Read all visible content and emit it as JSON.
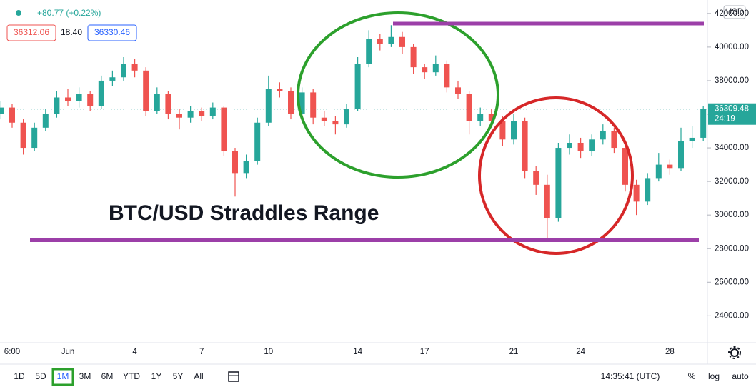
{
  "header": {
    "change": "+80.77 (+0.22%)",
    "bid": 36312.06,
    "spread": "18.40",
    "ask": 36330.46
  },
  "chart_data": {
    "type": "candlestick",
    "title": "BTC/USD Straddles Range",
    "currency": "USD",
    "categories": [
      null,
      "6:00",
      null,
      null,
      null,
      null,
      "Jun",
      null,
      null,
      null,
      null,
      null,
      "4",
      null,
      null,
      null,
      null,
      null,
      "7",
      null,
      null,
      null,
      null,
      null,
      "10",
      null,
      null,
      null,
      null,
      null,
      null,
      null,
      "14",
      null,
      null,
      null,
      null,
      null,
      "17",
      null,
      null,
      null,
      null,
      null,
      null,
      null,
      "21",
      null,
      null,
      null,
      null,
      null,
      "24",
      null,
      null,
      null,
      null,
      null,
      null,
      null,
      "28",
      null,
      null,
      null
    ],
    "open": [
      36000,
      36400,
      35500,
      34000,
      35200,
      36000,
      37000,
      36800,
      37200,
      36500,
      38000,
      38200,
      39000,
      38600,
      36200,
      37200,
      36000,
      35800,
      36200,
      35900,
      36400,
      33800,
      32500,
      33200,
      35500,
      37500,
      37400,
      36000,
      37300,
      35800,
      35600,
      35400,
      36300,
      39000,
      40500,
      40200,
      40600,
      40000,
      38800,
      38500,
      39000,
      37600,
      37200,
      35600,
      36000,
      35600,
      34500,
      35600,
      32600,
      31800,
      29800,
      34000,
      34300,
      33800,
      34500,
      35000,
      34000,
      31800,
      30800,
      32200,
      33000,
      32800,
      34400,
      34600
    ],
    "high": [
      36800,
      36600,
      35700,
      35500,
      36300,
      37400,
      37500,
      37600,
      37400,
      38300,
      38600,
      39400,
      39300,
      38800,
      37600,
      37400,
      36300,
      36500,
      36400,
      36700,
      36500,
      34000,
      33600,
      35800,
      38300,
      37900,
      37600,
      37600,
      37500,
      36200,
      35900,
      36600,
      39400,
      41000,
      40800,
      41300,
      40900,
      40200,
      39000,
      39500,
      39200,
      38000,
      37400,
      36400,
      36300,
      35900,
      36000,
      35800,
      32900,
      32400,
      34300,
      34800,
      34600,
      34800,
      35400,
      35200,
      34200,
      32100,
      32500,
      33700,
      33300,
      35200,
      35300,
      36500
    ],
    "low": [
      35700,
      35200,
      33600,
      33800,
      35000,
      35800,
      36500,
      36400,
      36200,
      36300,
      37700,
      38000,
      38200,
      35900,
      36000,
      35700,
      35100,
      35500,
      35600,
      35700,
      33500,
      31100,
      32200,
      33000,
      35300,
      37000,
      35700,
      35800,
      35400,
      35300,
      34800,
      35200,
      36200,
      38800,
      39800,
      40000,
      39600,
      38400,
      38100,
      38300,
      37300,
      36900,
      34800,
      35300,
      35200,
      34100,
      34200,
      32200,
      31200,
      28600,
      29600,
      33600,
      33400,
      33500,
      34200,
      33700,
      31400,
      30000,
      30600,
      32000,
      32400,
      32600,
      34000,
      34400
    ],
    "close": [
      36400,
      35500,
      34000,
      35200,
      36000,
      37000,
      36800,
      37200,
      36500,
      38000,
      38200,
      39000,
      38600,
      36200,
      37200,
      36000,
      35800,
      36200,
      35900,
      36400,
      33800,
      32500,
      33200,
      35500,
      37500,
      37400,
      36000,
      37300,
      35800,
      35600,
      35400,
      36300,
      39000,
      40500,
      40200,
      40600,
      40000,
      38800,
      38500,
      39000,
      37600,
      37200,
      35600,
      36000,
      35600,
      34500,
      35600,
      32600,
      31800,
      29800,
      34000,
      34300,
      33800,
      34500,
      35000,
      34000,
      31800,
      30800,
      32200,
      33000,
      32800,
      34400,
      34600,
      36300
    ],
    "up_color": "#26a69a",
    "down_color": "#ef5350",
    "ylim": [
      22400,
      42800
    ],
    "yticks": [
      {
        "value": 24000,
        "label": "24000.00"
      },
      {
        "value": 26000,
        "label": "26000.00"
      },
      {
        "value": 28000,
        "label": "28000.00"
      },
      {
        "value": 30000,
        "label": "30000.00"
      },
      {
        "value": 32000,
        "label": "32000.00"
      },
      {
        "value": 34000,
        "label": "34000.00"
      },
      {
        "value": 36000,
        "label": "36000.00"
      },
      {
        "value": 38000,
        "label": "38000.00"
      },
      {
        "value": 40000,
        "label": "40000.00"
      },
      {
        "value": 42000,
        "label": "42000.00"
      }
    ],
    "last_price": 36309.48,
    "countdown": "24:19",
    "levels": [
      41400,
      28500
    ],
    "level_color": "#9c3fa8"
  },
  "toolbar": {
    "ranges": [
      "1D",
      "5D",
      "1M",
      "3M",
      "6M",
      "YTD",
      "1Y",
      "5Y",
      "All"
    ],
    "active": 2,
    "clock": "14:35:41 (UTC)",
    "scale_buttons": [
      "%",
      "log",
      "auto"
    ]
  }
}
